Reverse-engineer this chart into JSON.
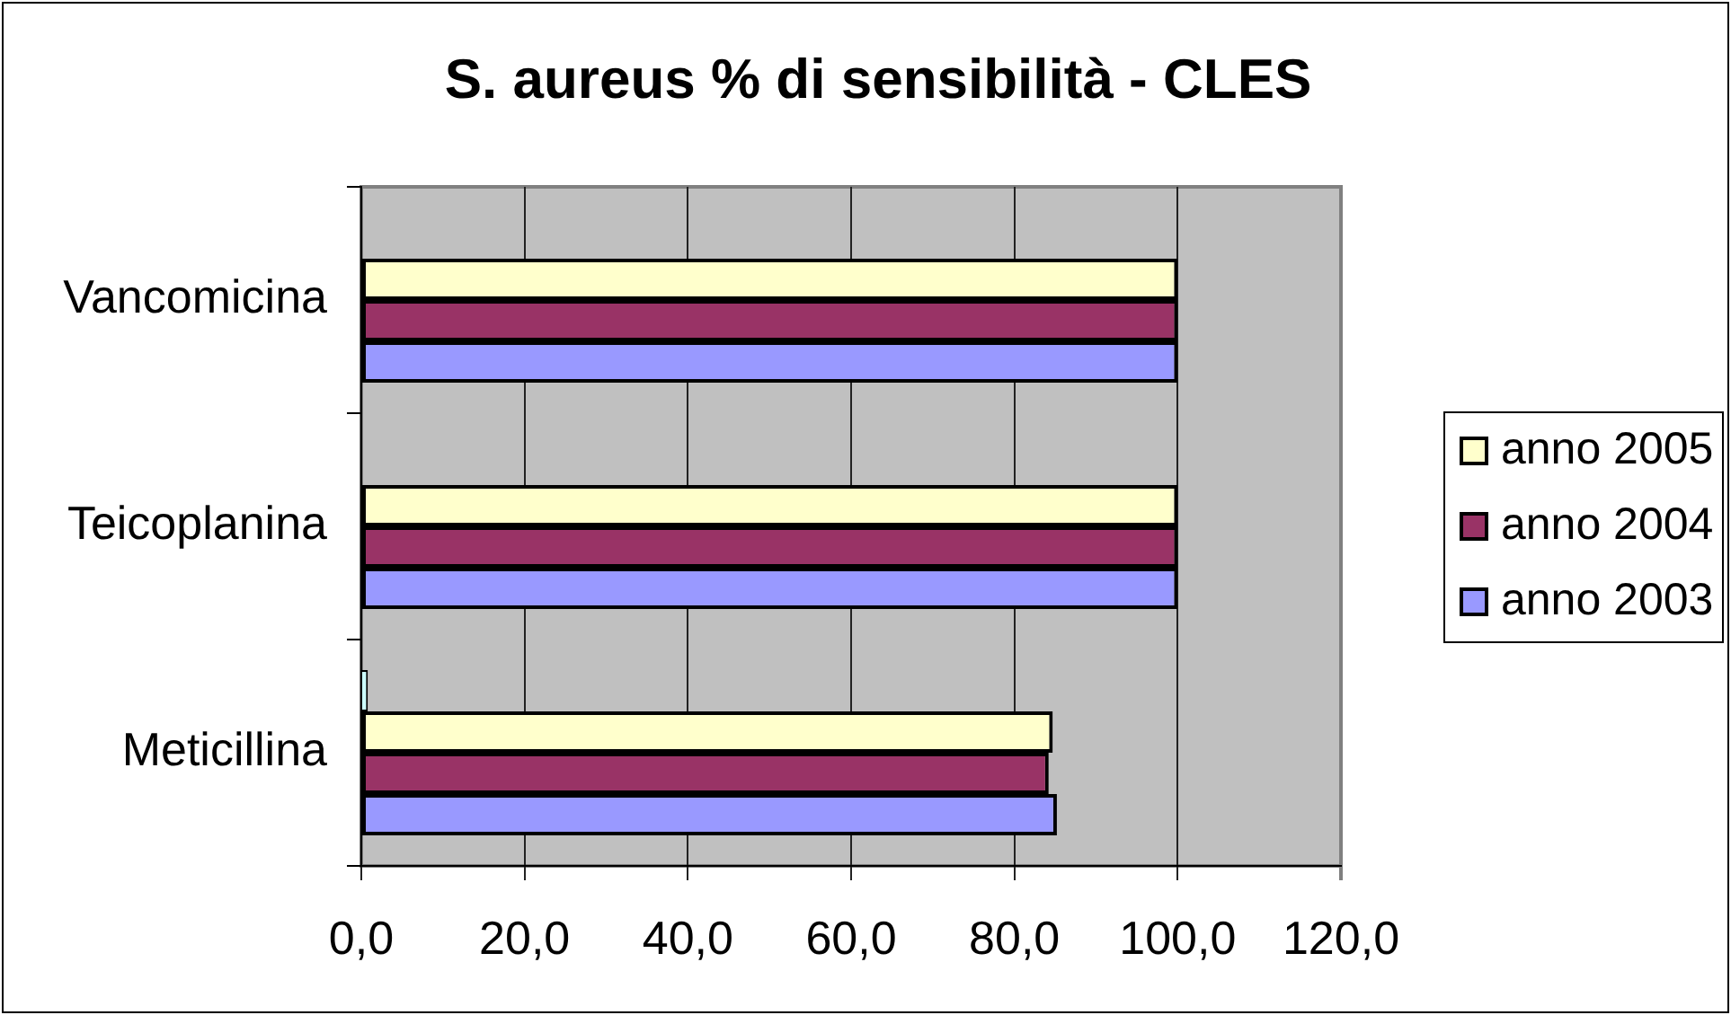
{
  "chart_data": {
    "type": "bar",
    "orientation": "horizontal",
    "title": "S. aureus % di sensibilità - CLES",
    "categories": [
      "Vancomicina",
      "Teicoplanina",
      "Meticillina"
    ],
    "series": [
      {
        "color": "#ccffff",
        "values": [
          null,
          null,
          0.8
        ]
      },
      {
        "name": "anno 2005",
        "color": "#ffffcc",
        "values": [
          100,
          100,
          84.7
        ]
      },
      {
        "name": "anno 2004",
        "color": "#993366",
        "values": [
          100,
          100,
          84.2
        ]
      },
      {
        "name": "anno 2003",
        "color": "#9999ff",
        "values": [
          100,
          100,
          85.2
        ]
      }
    ],
    "xlim": [
      0,
      120
    ],
    "xticks": [
      {
        "value": 0,
        "label": "0,0"
      },
      {
        "value": 20,
        "label": "20,0"
      },
      {
        "value": 40,
        "label": "40,0"
      },
      {
        "value": 60,
        "label": "60,0"
      },
      {
        "value": 80,
        "label": "80,0"
      },
      {
        "value": 100,
        "label": "100,0"
      },
      {
        "value": 120,
        "label": "120,0"
      }
    ],
    "grid": "x",
    "legend": "right"
  }
}
